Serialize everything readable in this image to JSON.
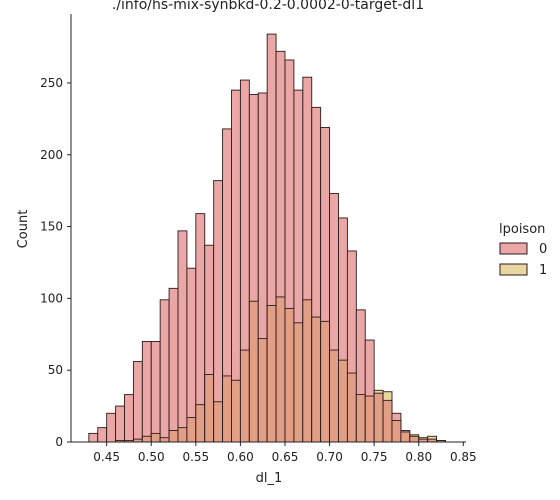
{
  "chart_data": {
    "type": "bar",
    "title": "./info/hs-mix-synbkd-0.2-0.0002-0-target-dl1",
    "xlabel": "dl_1",
    "ylabel": "Count",
    "xlim": [
      0.41,
      0.853
    ],
    "ylim": [
      0,
      298
    ],
    "x_ticks": [
      "0.45",
      "0.50",
      "0.55",
      "0.60",
      "0.65",
      "0.70",
      "0.75",
      "0.80",
      "0.85"
    ],
    "y_ticks": [
      "0",
      "50",
      "100",
      "150",
      "200",
      "250"
    ],
    "bin_start": 0.43,
    "bin_width": 0.01,
    "legend": {
      "title": "lpoison",
      "placement": "right",
      "entries": [
        "0",
        "1"
      ]
    },
    "colors": {
      "series_0": "#eba6a6",
      "series_1": "#ead7a0",
      "overlap": "#e39f85",
      "edge": "#2b1b1b"
    },
    "series": [
      {
        "name": "0",
        "values": [
          6,
          10,
          20,
          25,
          33,
          56,
          70,
          70,
          99,
          107,
          147,
          121,
          159,
          137,
          182,
          218,
          245,
          252,
          242,
          243,
          284,
          272,
          266,
          245,
          254,
          233,
          219,
          173,
          156,
          133,
          92,
          71,
          34,
          29,
          20,
          8,
          4,
          2,
          2,
          1,
          0,
          0
        ]
      },
      {
        "name": "1",
        "values": [
          0,
          0,
          0,
          1,
          1,
          2,
          4,
          6,
          3,
          8,
          10,
          17,
          26,
          47,
          28,
          46,
          43,
          64,
          98,
          72,
          95,
          101,
          93,
          83,
          99,
          87,
          84,
          64,
          57,
          48,
          33,
          32,
          36,
          35,
          15,
          7,
          5,
          3,
          4,
          1,
          0,
          0
        ]
      }
    ]
  }
}
